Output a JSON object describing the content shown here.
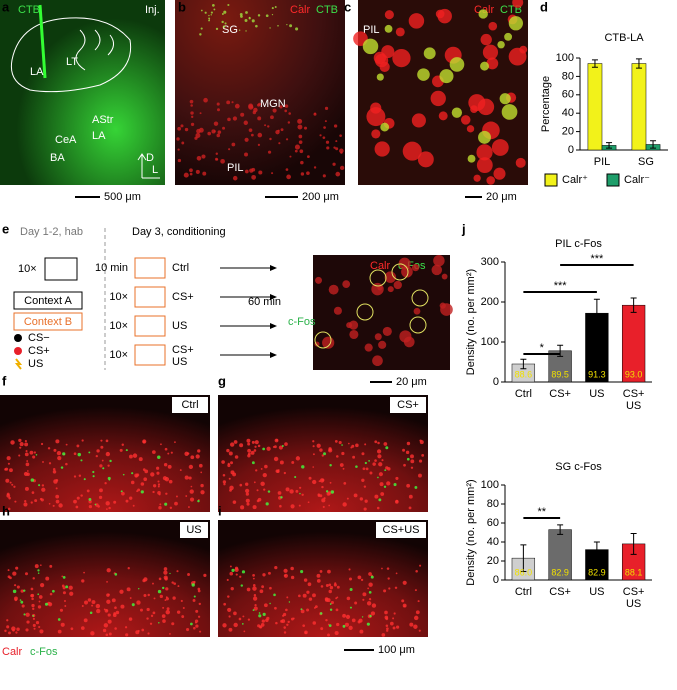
{
  "panel_letters": [
    "a",
    "b",
    "c",
    "d",
    "e",
    "f",
    "g",
    "h",
    "i",
    "j"
  ],
  "panel_a": {
    "tracer": "CTB",
    "injection": "Inj.",
    "regions": [
      "LA",
      "LT",
      "AStr",
      "CeA",
      "LA",
      "BA"
    ],
    "axes": [
      "D",
      "L"
    ],
    "scale": "500 μm"
  },
  "panel_b": {
    "stain_1": "Calr",
    "stain_2": "CTB",
    "regions": [
      "SG",
      "MGN",
      "PIL"
    ],
    "scale": "200 μm"
  },
  "panel_c": {
    "stain_1": "Calr",
    "stain_2": "CTB",
    "region": "PIL",
    "scale": "20 μm"
  },
  "panel_e": {
    "hab": "Day 1-2, hab",
    "hab_reps": "10×",
    "contexts": [
      "Context A",
      "Context B"
    ],
    "cues": [
      "CS−",
      "CS+",
      "US"
    ],
    "day3": "Day 3, conditioning",
    "rows": [
      {
        "left": "10 min",
        "right": "Ctrl"
      },
      {
        "left": "10×",
        "right": "CS+"
      },
      {
        "left": "10×",
        "right": "US"
      },
      {
        "left": "10×",
        "right": "CS+ US"
      }
    ],
    "delay": "60 min",
    "readout": "c-Fos",
    "stain_1": "Calr",
    "stain_2": "c-Fos",
    "scale": "20 μm"
  },
  "panel_fghi": {
    "conditions": [
      "Ctrl",
      "CS+",
      "US",
      "CS+US"
    ],
    "stain_1": "Calr",
    "stain_2": "c-Fos",
    "scale": "100 μm"
  },
  "chart_data": [
    {
      "type": "bar",
      "title": "CTB-LA",
      "y_label": "Percentage",
      "categories": [
        "PIL",
        "SG"
      ],
      "series": [
        {
          "name": "Calr⁺",
          "color": "#f2f21a",
          "values": [
            94,
            94
          ],
          "errors": [
            4,
            5
          ]
        },
        {
          "name": "Calr⁻",
          "color": "#1e9e6a",
          "values": [
            5,
            6
          ],
          "errors": [
            3,
            4
          ]
        }
      ],
      "ylim": [
        0,
        100
      ],
      "yticks": [
        0,
        20,
        40,
        60,
        80,
        100
      ]
    },
    {
      "type": "bar",
      "title": "PIL c-Fos",
      "y_label": "Density (no. per mm²)",
      "categories": [
        "Ctrl",
        "CS+",
        "US",
        "CS+ US"
      ],
      "series": [
        {
          "values": [
            45,
            78,
            172,
            192
          ],
          "errors": [
            12,
            14,
            35,
            18
          ],
          "colors": [
            "#cfcfcf",
            "#6b6b6b",
            "#000000",
            "#e8202a"
          ],
          "bar_labels": [
            "88.6",
            "89.5",
            "91.3",
            "93.0"
          ]
        }
      ],
      "significance": [
        "*",
        "***",
        "***"
      ],
      "ylim": [
        0,
        300
      ],
      "yticks": [
        0,
        100,
        200,
        300
      ]
    },
    {
      "type": "bar",
      "title": "SG c-Fos",
      "y_label": "Density (no. per mm²)",
      "categories": [
        "Ctrl",
        "CS+",
        "US",
        "CS+ US"
      ],
      "series": [
        {
          "values": [
            23,
            53,
            32,
            38
          ],
          "errors": [
            14,
            5,
            8,
            11
          ],
          "colors": [
            "#cfcfcf",
            "#6b6b6b",
            "#000000",
            "#e8202a"
          ],
          "bar_labels": [
            "86.0",
            "82.9",
            "82.9",
            "88.1"
          ]
        }
      ],
      "significance": [
        "**"
      ],
      "ylim": [
        0,
        100
      ],
      "yticks": [
        0,
        20,
        40,
        60,
        80,
        100
      ]
    }
  ]
}
